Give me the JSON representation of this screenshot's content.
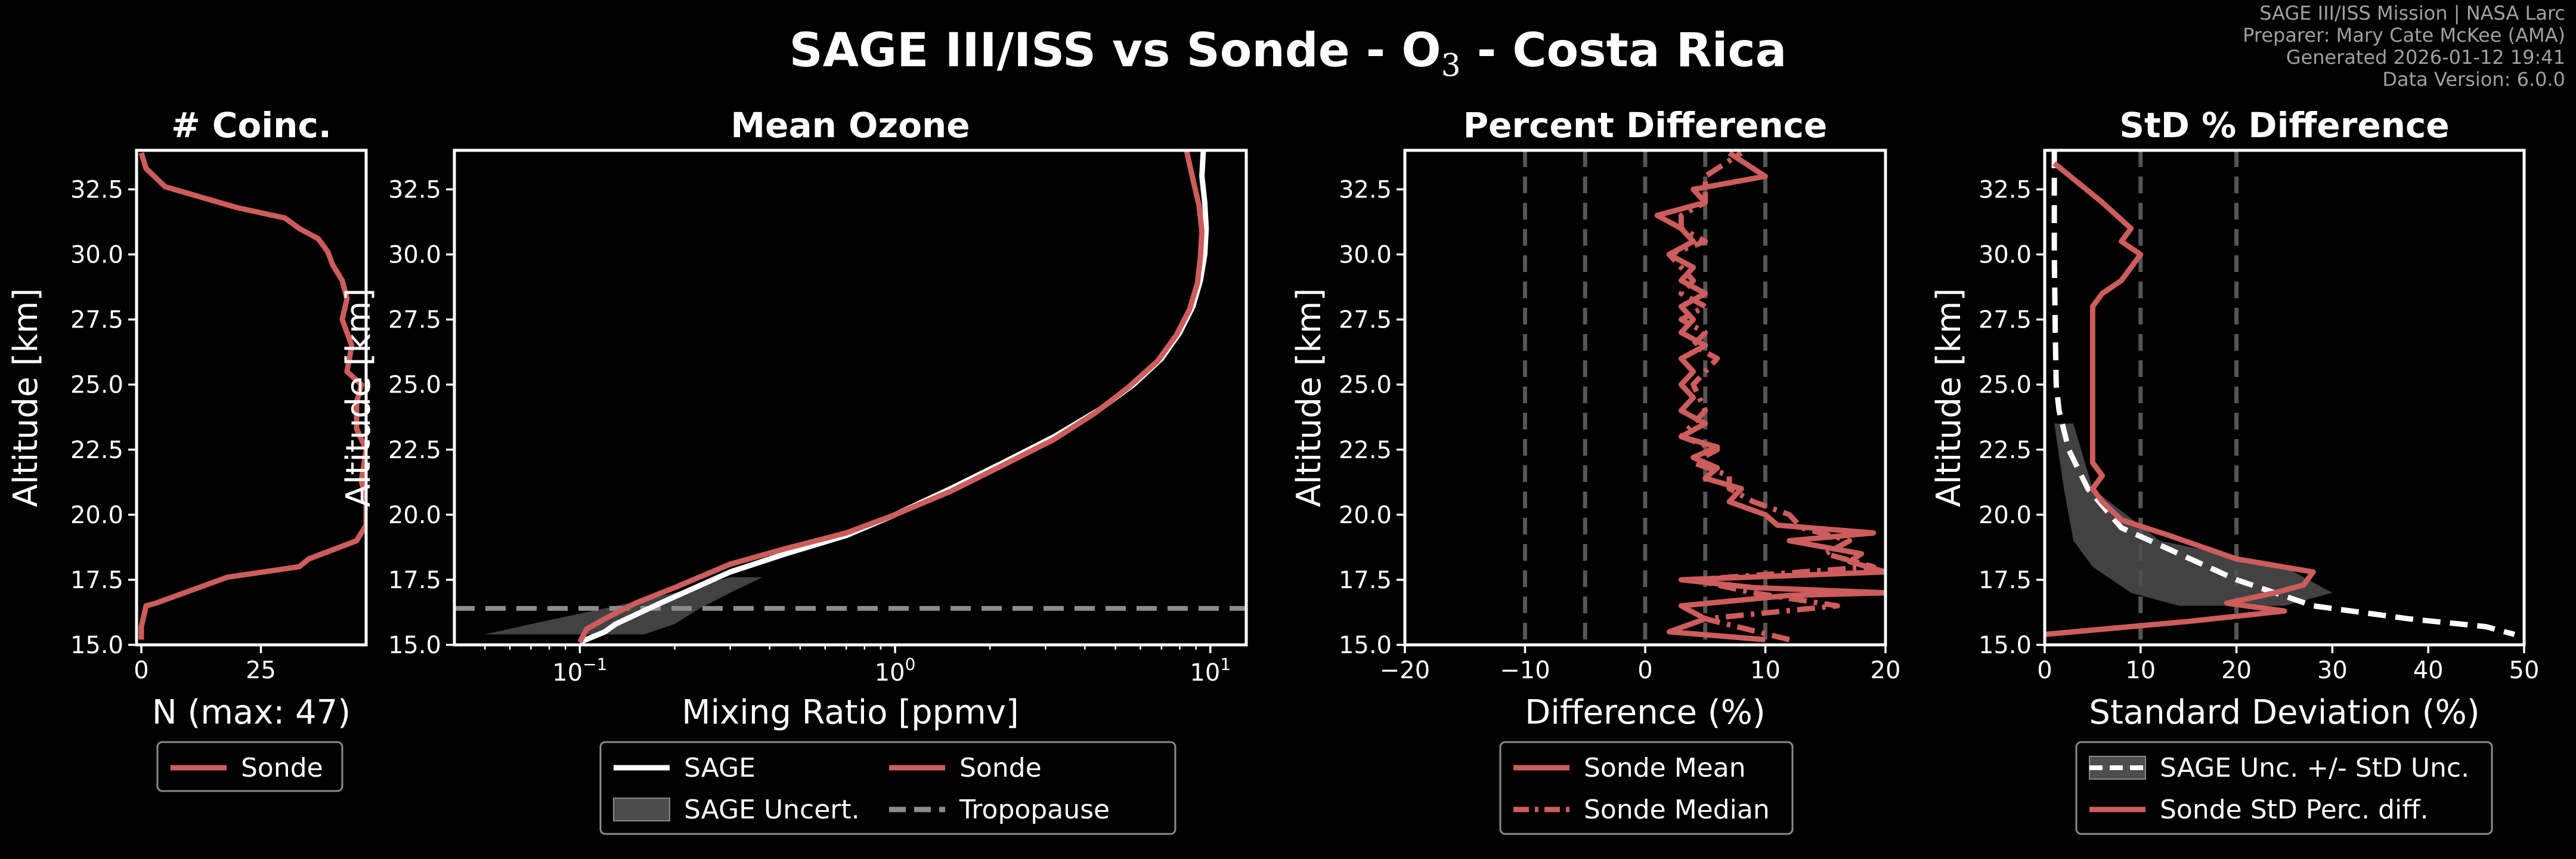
{
  "header": {
    "title_prefix": "SAGE III/ISS vs Sonde - O",
    "title_sub": "3",
    "title_suffix": " - Costa Rica",
    "meta": [
      "SAGE III/ISS Mission | NASA Larc",
      "Preparer: Mary Cate McKee (AMA)",
      "Generated 2026-01-12 19:41",
      "Data Version: 6.0.0"
    ]
  },
  "colors": {
    "sonde": "#cd5c5c",
    "sage": "#ffffff",
    "uncert": "#4d4d4d",
    "tropopause": "#8c8c8c",
    "refline": "#555555"
  },
  "chart_data": [
    {
      "id": "coinc",
      "type": "line",
      "title": "# Coinc.",
      "xlabel": "N (max: 47)",
      "ylabel": "Altitude [km]",
      "xlim": [
        -1,
        47
      ],
      "ylim": [
        15,
        34
      ],
      "xticks": [
        0,
        25
      ],
      "xtick_labels": [
        "0",
        "25"
      ],
      "yticks": [
        15,
        17.5,
        20,
        22.5,
        25,
        27.5,
        30,
        32.5
      ],
      "ytick_labels": [
        "15.0",
        "17.5",
        "20.0",
        "22.5",
        "25.0",
        "27.5",
        "30.0",
        "32.5"
      ],
      "series": [
        {
          "name": "Sonde",
          "style": "solid",
          "color": "#cd5c5c",
          "x": [
            0,
            0,
            1,
            3,
            18,
            33,
            35,
            45,
            47,
            47,
            46,
            47,
            45,
            45,
            46,
            43,
            44,
            42,
            43,
            42,
            40,
            39,
            37,
            33,
            30,
            20,
            5,
            1,
            0
          ],
          "y": [
            15.2,
            15.7,
            16.5,
            16.6,
            17.6,
            18.0,
            18.3,
            19.0,
            19.6,
            20.6,
            21.3,
            22.5,
            23.3,
            24.3,
            25.0,
            25.5,
            26.5,
            27.5,
            28.3,
            29.0,
            29.6,
            30.1,
            30.6,
            31.0,
            31.4,
            31.8,
            32.6,
            33.3,
            33.9
          ]
        }
      ],
      "legend": [
        "Sonde"
      ]
    },
    {
      "id": "mean",
      "type": "line",
      "title": "Mean Ozone",
      "xlabel": "Mixing Ratio [ppmv]",
      "ylabel": "Altitude [km]",
      "xscale": "log",
      "xlim": [
        0.04,
        13
      ],
      "ylim": [
        15,
        34
      ],
      "xticks": [
        0.1,
        1,
        10
      ],
      "xtick_base": "10",
      "xtick_exps": [
        "−1",
        "0",
        "1"
      ],
      "yticks": [
        15,
        17.5,
        20,
        22.5,
        25,
        27.5,
        30,
        32.5
      ],
      "ytick_labels": [
        "15.0",
        "17.5",
        "20.0",
        "22.5",
        "25.0",
        "27.5",
        "30.0",
        "32.5"
      ],
      "tropopause": 16.4,
      "uncert_band": {
        "lower": [
          0.05,
          0.07,
          0.12,
          0.2,
          0.3
        ],
        "upper": [
          0.16,
          0.2,
          0.24,
          0.3,
          0.38
        ],
        "y": [
          15.4,
          15.8,
          16.4,
          17.0,
          17.6
        ]
      },
      "series": [
        {
          "name": "SAGE",
          "style": "solid",
          "color": "#ffffff",
          "x": [
            0.1,
            0.12,
            0.13,
            0.18,
            0.3,
            0.45,
            0.7,
            1.0,
            1.5,
            2.2,
            3.2,
            4.4,
            5.7,
            7.0,
            8.0,
            8.8,
            9.3,
            9.6,
            9.7,
            9.6,
            9.4,
            9.5
          ],
          "y": [
            15.1,
            15.5,
            15.8,
            16.6,
            17.8,
            18.5,
            19.2,
            20.0,
            21.0,
            22.0,
            23.0,
            24.0,
            25.0,
            26.0,
            27.0,
            28.0,
            29.0,
            30.0,
            31.0,
            32.0,
            33.0,
            34.0
          ]
        },
        {
          "name": "Sonde",
          "style": "solid",
          "color": "#cd5c5c",
          "x": [
            0.1,
            0.105,
            0.12,
            0.15,
            0.2,
            0.3,
            0.45,
            0.7,
            1.0,
            1.5,
            2.2,
            3.2,
            4.3,
            5.5,
            6.8,
            7.8,
            8.6,
            9.1,
            9.3,
            9.4,
            9.2,
            8.8,
            8.4
          ],
          "y": [
            15.1,
            15.6,
            16.0,
            16.6,
            17.2,
            18.1,
            18.7,
            19.3,
            20.0,
            20.9,
            21.9,
            22.9,
            23.9,
            24.9,
            25.9,
            26.9,
            27.9,
            28.9,
            29.9,
            30.9,
            31.9,
            32.9,
            34.0
          ]
        }
      ],
      "legend": [
        "SAGE",
        "Sonde",
        "SAGE Uncert.",
        "Tropopause"
      ]
    },
    {
      "id": "pct",
      "type": "line",
      "title": "Percent Difference",
      "xlabel": "Difference (%)",
      "ylabel": "Altitude [km]",
      "xlim": [
        -20,
        20
      ],
      "ylim": [
        15,
        34
      ],
      "xticks": [
        -20,
        -10,
        0,
        10,
        20
      ],
      "xtick_labels": [
        "−20",
        "−10",
        "0",
        "10",
        "20"
      ],
      "yticks": [
        15,
        17.5,
        20,
        22.5,
        25,
        27.5,
        30,
        32.5
      ],
      "ytick_labels": [
        "15.0",
        "17.5",
        "20.0",
        "22.5",
        "25.0",
        "27.5",
        "30.0",
        "32.5"
      ],
      "ref_lines": [
        -10,
        -5,
        0,
        5,
        10
      ],
      "series": [
        {
          "name": "Sonde Mean",
          "style": "solid",
          "color": "#cd5c5c",
          "x": [
            10,
            2,
            5,
            3,
            12,
            20,
            9,
            3,
            20,
            17,
            18,
            12,
            19,
            11,
            10,
            7,
            8,
            5,
            6,
            4,
            6,
            3,
            5,
            3,
            4,
            3,
            4,
            3,
            5,
            3,
            4,
            3,
            5,
            3,
            4,
            2,
            4,
            3,
            1,
            5,
            4,
            10,
            7
          ],
          "y": [
            15.2,
            15.5,
            16.0,
            16.5,
            16.9,
            17.0,
            17.2,
            17.5,
            17.8,
            18.2,
            18.5,
            19.0,
            19.3,
            19.6,
            20.0,
            20.5,
            21.0,
            21.4,
            21.8,
            22.2,
            22.6,
            23.0,
            23.5,
            24.0,
            24.5,
            25.0,
            25.5,
            26.0,
            26.5,
            27.0,
            27.5,
            28.0,
            28.5,
            29.0,
            29.5,
            30.0,
            30.5,
            31.0,
            31.5,
            32.0,
            32.5,
            33.0,
            33.9
          ]
        },
        {
          "name": "Sonde Median",
          "style": "dashdot",
          "color": "#cd5c5c",
          "x": [
            12,
            5,
            16,
            9,
            4,
            19,
            15,
            17,
            13,
            12,
            9,
            7,
            7,
            4,
            6,
            3,
            5,
            4,
            6,
            4,
            5,
            3,
            5,
            3,
            4,
            2,
            5,
            3,
            3,
            5,
            5,
            8
          ],
          "y": [
            15.2,
            16.0,
            16.5,
            17.0,
            17.5,
            18.0,
            18.5,
            19.0,
            19.5,
            20.0,
            20.5,
            21.0,
            21.5,
            22.0,
            22.5,
            23.0,
            24.0,
            25.0,
            26.0,
            26.5,
            27.0,
            27.5,
            28.0,
            28.5,
            29.0,
            30.0,
            30.5,
            31.0,
            31.5,
            32.0,
            33.0,
            33.9
          ]
        }
      ],
      "legend": [
        "Sonde Mean",
        "Sonde Median"
      ]
    },
    {
      "id": "std",
      "type": "line",
      "title": "StD % Difference",
      "xlabel": "Standard Deviation (%)",
      "ylabel": "Altitude [km]",
      "xlim": [
        0,
        50
      ],
      "ylim": [
        15,
        34
      ],
      "xticks": [
        0,
        10,
        20,
        30,
        40,
        50
      ],
      "xtick_labels": [
        "0",
        "10",
        "20",
        "30",
        "40",
        "50"
      ],
      "yticks": [
        15,
        17.5,
        20,
        22.5,
        25,
        27.5,
        30,
        32.5
      ],
      "ytick_labels": [
        "15.0",
        "17.5",
        "20.0",
        "22.5",
        "25.0",
        "27.5",
        "30.0",
        "32.5"
      ],
      "ref_lines": [
        10,
        20
      ],
      "uncert_band": {
        "lower": [
          1,
          2,
          3,
          5,
          9,
          14
        ],
        "upper": [
          3,
          5,
          12,
          25,
          30,
          25
        ],
        "y": [
          23.5,
          21.0,
          19.0,
          18.0,
          17.0,
          16.5
        ]
      },
      "series": [
        {
          "name": "SAGE Unc. +/- StD Unc.",
          "style": "dashed",
          "color": "#ffffff",
          "x": [
            1,
            1,
            1.1,
            1.2,
            1.5,
            2.5,
            4.5,
            8,
            14,
            20,
            28,
            38,
            46,
            49
          ],
          "y": [
            34,
            30,
            27,
            25,
            24,
            22.5,
            21,
            19.5,
            18.5,
            17.5,
            16.5,
            16.0,
            15.7,
            15.4
          ]
        },
        {
          "name": "Sonde StD Perc. diff.",
          "style": "solid",
          "color": "#cd5c5c",
          "x": [
            0,
            15,
            25,
            19,
            24,
            27,
            28,
            20,
            13,
            8,
            6,
            5,
            6,
            5,
            5,
            5,
            5,
            5,
            5,
            5,
            5,
            5,
            5,
            5,
            5,
            5,
            6,
            8,
            10,
            8,
            9,
            6,
            1
          ],
          "y": [
            15.4,
            15.9,
            16.3,
            16.6,
            17.0,
            17.3,
            17.8,
            18.3,
            19.2,
            19.8,
            20.5,
            21.0,
            21.5,
            22.0,
            22.5,
            23.0,
            23.5,
            24.0,
            24.5,
            25.0,
            25.5,
            26.0,
            26.5,
            27.0,
            27.5,
            28.0,
            28.5,
            29.0,
            30.0,
            30.5,
            31.0,
            32.0,
            33.5
          ]
        }
      ],
      "legend": [
        "SAGE Unc. +/- StD Unc.",
        "Sonde StD Perc. diff."
      ]
    }
  ]
}
